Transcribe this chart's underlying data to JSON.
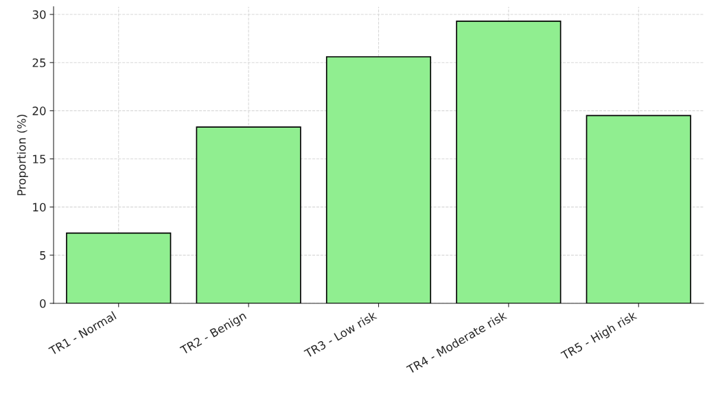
{
  "chart_data": {
    "type": "bar",
    "ylabel": "Proportion (%)",
    "categories": [
      "TR1 - Normal",
      "TR2 - Benign",
      "TR3 - Low risk",
      "TR4 - Moderate risk",
      "TR5 - High risk"
    ],
    "values": [
      7.3,
      18.3,
      25.6,
      29.3,
      19.5
    ],
    "color": "#90ee90",
    "ylim": [
      0,
      30.8
    ],
    "yticks": [
      0,
      5,
      10,
      15,
      20,
      25,
      30
    ],
    "grid": true
  }
}
